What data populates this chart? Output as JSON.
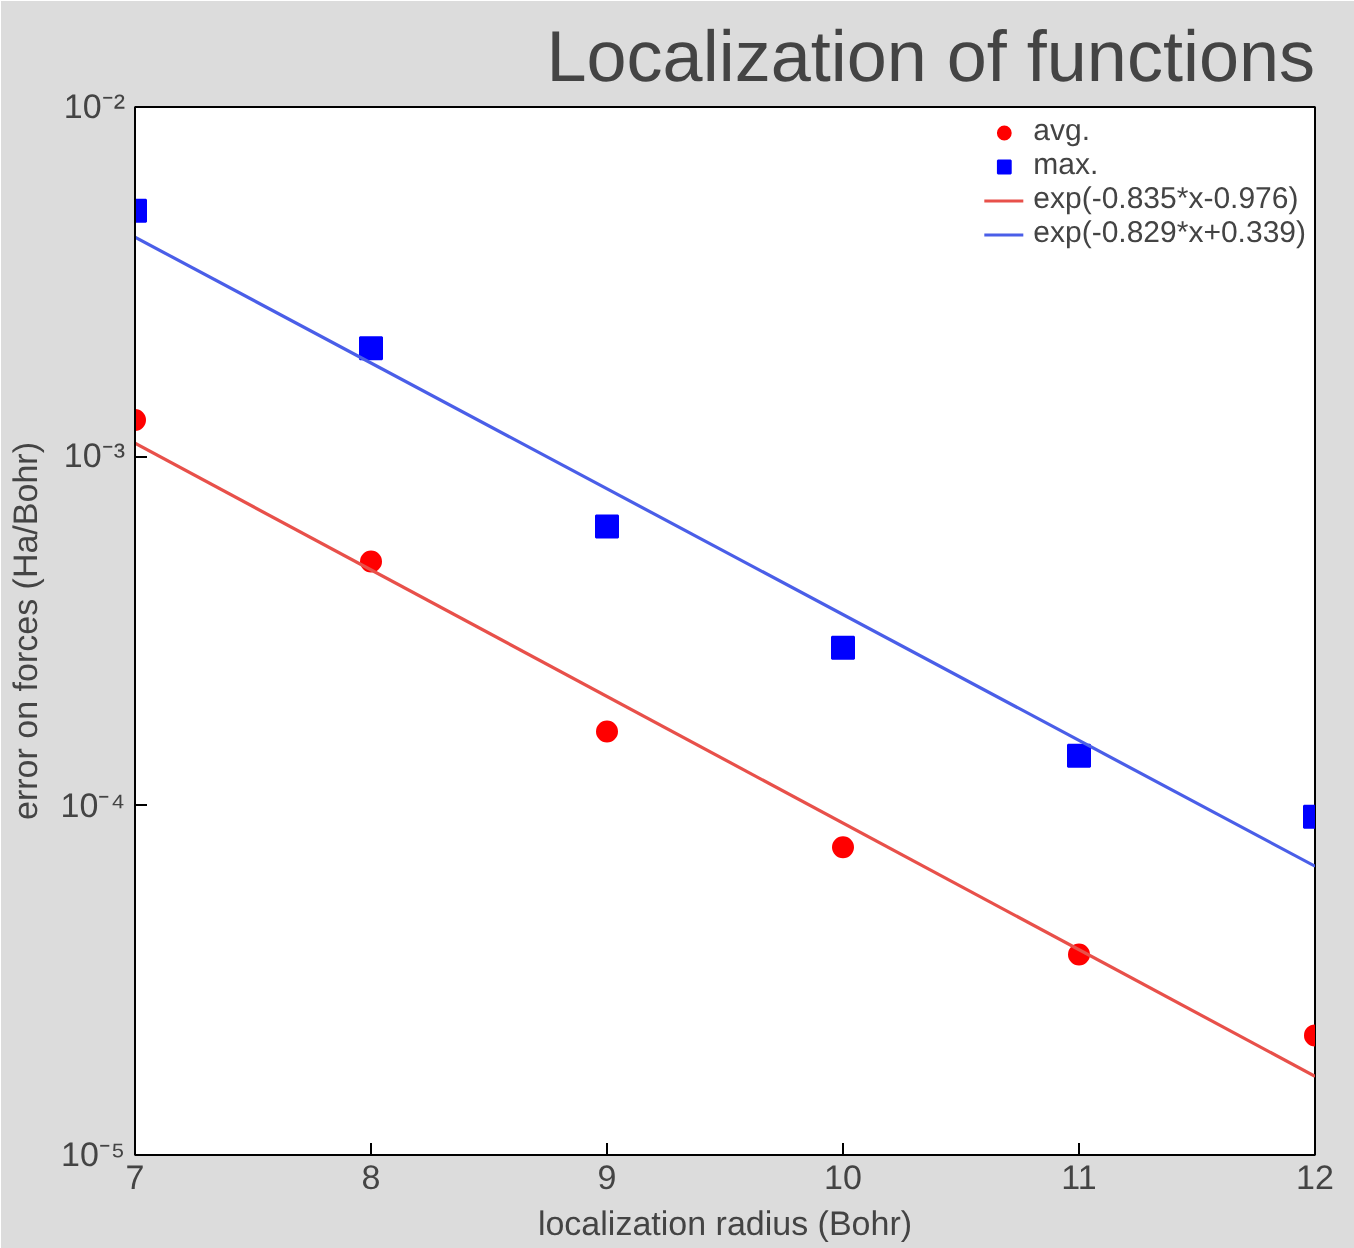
{
  "chart_data": {
    "type": "scatter",
    "title": "Localization of functions",
    "xlabel": "localization radius (Bohr)",
    "ylabel": "error on forces (Ha/Bohr)",
    "log": "y",
    "xlim": [
      7,
      12
    ],
    "xticks": [
      7,
      8,
      9,
      10,
      11,
      12
    ],
    "ylim": [
      1e-05,
      0.01
    ],
    "yticks": [
      {
        "value": 1e-05,
        "label": "10⁻⁵"
      },
      {
        "value": 0.0001,
        "label": "10⁻⁴"
      },
      {
        "value": 0.001,
        "label": "10⁻³"
      },
      {
        "value": 0.01,
        "label": "10⁻²"
      }
    ],
    "grid": false,
    "legend": "top right",
    "series": [
      {
        "name": "avg.",
        "marker": "circle",
        "color": "#ff0000",
        "x": [
          7,
          8,
          9,
          10,
          11,
          12
        ],
        "values": [
          0.00127,
          0.0005,
          0.000163,
          7.6e-05,
          3.75e-05,
          2.2e-05
        ]
      },
      {
        "name": "max.",
        "marker": "square",
        "color": "#0000ff",
        "x": [
          7,
          8,
          9,
          10,
          11,
          12
        ],
        "values": [
          0.00505,
          0.00204,
          0.00063,
          0.000283,
          0.000139,
          9.3e-05
        ]
      },
      {
        "name": "exp(-0.835*x-0.976)",
        "type": "line",
        "line_style": "solid",
        "color": "#e8504a",
        "x": [
          7,
          12
        ],
        "values": [
          0.00109,
          1.68e-05
        ]
      },
      {
        "name": "exp(-0.829*x+0.339)",
        "type": "line",
        "line_style": "solid",
        "color": "#4a5ee8",
        "x": [
          7,
          12
        ],
        "values": [
          0.00424,
          6.71e-05
        ]
      }
    ]
  }
}
